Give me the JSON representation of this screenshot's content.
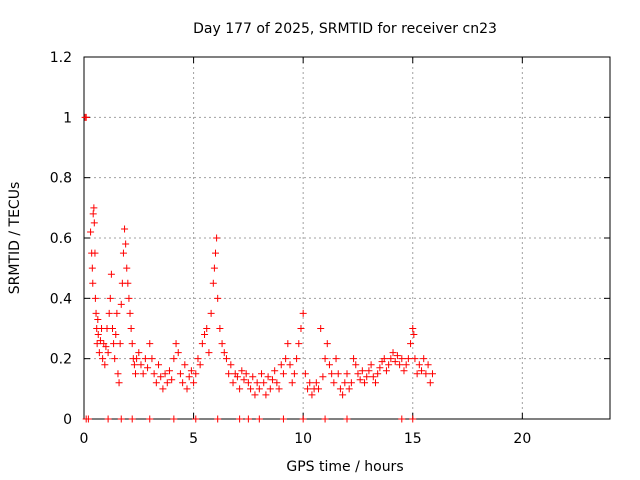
{
  "chart_data": {
    "type": "scatter",
    "title": "Day 177 of 2025, SRMTID for receiver cn23",
    "xlabel": "GPS time / hours",
    "ylabel": "SRMTID / TECUs",
    "xlim": [
      0,
      24
    ],
    "ylim": [
      0,
      1.2
    ],
    "xticks": [
      0,
      5,
      10,
      15,
      20
    ],
    "xtick_labels": [
      "0",
      "5",
      "10",
      "15",
      "20"
    ],
    "yticks": [
      0,
      0.2,
      0.4,
      0.6,
      0.8,
      1.0,
      1.2
    ],
    "ytick_labels": [
      "0",
      "0.2",
      "0.4",
      "0.6",
      "0.8",
      "1",
      "1.2"
    ],
    "grid": true,
    "marker": "+",
    "color": "#ff0000",
    "series": [
      {
        "name": "SRMTID",
        "points": [
          [
            0.05,
            1.0
          ],
          [
            0.1,
            1.0
          ],
          [
            0.3,
            0.62
          ],
          [
            0.35,
            0.55
          ],
          [
            0.38,
            0.5
          ],
          [
            0.4,
            0.45
          ],
          [
            0.42,
            0.68
          ],
          [
            0.45,
            0.7
          ],
          [
            0.47,
            0.65
          ],
          [
            0.5,
            0.55
          ],
          [
            0.52,
            0.4
          ],
          [
            0.55,
            0.35
          ],
          [
            0.58,
            0.3
          ],
          [
            0.6,
            0.25
          ],
          [
            0.63,
            0.33
          ],
          [
            0.65,
            0.28
          ],
          [
            0.7,
            0.22
          ],
          [
            0.75,
            0.26
          ],
          [
            0.8,
            0.3
          ],
          [
            0.85,
            0.2
          ],
          [
            0.9,
            0.25
          ],
          [
            0.95,
            0.18
          ],
          [
            1.0,
            0.24
          ],
          [
            1.05,
            0.3
          ],
          [
            1.1,
            0.22
          ],
          [
            1.15,
            0.35
          ],
          [
            1.2,
            0.4
          ],
          [
            1.25,
            0.48
          ],
          [
            1.3,
            0.3
          ],
          [
            1.35,
            0.25
          ],
          [
            1.4,
            0.2
          ],
          [
            1.45,
            0.28
          ],
          [
            1.5,
            0.35
          ],
          [
            1.55,
            0.15
          ],
          [
            1.6,
            0.12
          ],
          [
            1.65,
            0.25
          ],
          [
            1.7,
            0.38
          ],
          [
            1.75,
            0.45
          ],
          [
            1.8,
            0.55
          ],
          [
            1.85,
            0.63
          ],
          [
            1.9,
            0.58
          ],
          [
            1.95,
            0.5
          ],
          [
            2.0,
            0.45
          ],
          [
            2.05,
            0.4
          ],
          [
            2.1,
            0.35
          ],
          [
            2.15,
            0.3
          ],
          [
            2.2,
            0.25
          ],
          [
            2.25,
            0.2
          ],
          [
            2.3,
            0.18
          ],
          [
            2.35,
            0.15
          ],
          [
            2.4,
            0.2
          ],
          [
            2.5,
            0.22
          ],
          [
            2.6,
            0.18
          ],
          [
            2.7,
            0.15
          ],
          [
            2.8,
            0.2
          ],
          [
            2.9,
            0.17
          ],
          [
            3.0,
            0.25
          ],
          [
            3.1,
            0.2
          ],
          [
            3.2,
            0.15
          ],
          [
            3.3,
            0.12
          ],
          [
            3.4,
            0.18
          ],
          [
            3.5,
            0.14
          ],
          [
            3.6,
            0.1
          ],
          [
            3.7,
            0.15
          ],
          [
            3.8,
            0.12
          ],
          [
            3.9,
            0.16
          ],
          [
            4.0,
            0.13
          ],
          [
            4.1,
            0.2
          ],
          [
            4.2,
            0.25
          ],
          [
            4.3,
            0.22
          ],
          [
            4.4,
            0.15
          ],
          [
            4.5,
            0.12
          ],
          [
            4.6,
            0.18
          ],
          [
            4.7,
            0.1
          ],
          [
            4.8,
            0.14
          ],
          [
            4.9,
            0.16
          ],
          [
            5.0,
            0.12
          ],
          [
            5.1,
            0.15
          ],
          [
            5.2,
            0.2
          ],
          [
            5.3,
            0.18
          ],
          [
            5.4,
            0.25
          ],
          [
            5.5,
            0.28
          ],
          [
            5.6,
            0.3
          ],
          [
            5.7,
            0.22
          ],
          [
            5.8,
            0.35
          ],
          [
            5.9,
            0.45
          ],
          [
            5.95,
            0.5
          ],
          [
            6.0,
            0.55
          ],
          [
            6.05,
            0.6
          ],
          [
            6.1,
            0.4
          ],
          [
            6.2,
            0.3
          ],
          [
            6.3,
            0.25
          ],
          [
            6.4,
            0.22
          ],
          [
            6.5,
            0.2
          ],
          [
            6.6,
            0.15
          ],
          [
            6.7,
            0.18
          ],
          [
            6.8,
            0.12
          ],
          [
            6.9,
            0.15
          ],
          [
            7.0,
            0.14
          ],
          [
            7.1,
            0.1
          ],
          [
            7.2,
            0.16
          ],
          [
            7.3,
            0.13
          ],
          [
            7.4,
            0.15
          ],
          [
            7.5,
            0.12
          ],
          [
            7.6,
            0.1
          ],
          [
            7.7,
            0.14
          ],
          [
            7.8,
            0.08
          ],
          [
            7.9,
            0.12
          ],
          [
            8.0,
            0.1
          ],
          [
            8.1,
            0.15
          ],
          [
            8.2,
            0.12
          ],
          [
            8.3,
            0.08
          ],
          [
            8.4,
            0.14
          ],
          [
            8.5,
            0.1
          ],
          [
            8.6,
            0.13
          ],
          [
            8.7,
            0.16
          ],
          [
            8.8,
            0.12
          ],
          [
            8.9,
            0.1
          ],
          [
            9.0,
            0.18
          ],
          [
            9.1,
            0.15
          ],
          [
            9.2,
            0.2
          ],
          [
            9.3,
            0.25
          ],
          [
            9.4,
            0.18
          ],
          [
            9.5,
            0.12
          ],
          [
            9.6,
            0.15
          ],
          [
            9.7,
            0.2
          ],
          [
            9.8,
            0.25
          ],
          [
            9.9,
            0.3
          ],
          [
            10.0,
            0.35
          ],
          [
            10.1,
            0.15
          ],
          [
            10.2,
            0.1
          ],
          [
            10.3,
            0.12
          ],
          [
            10.4,
            0.08
          ],
          [
            10.5,
            0.1
          ],
          [
            10.6,
            0.12
          ],
          [
            10.7,
            0.1
          ],
          [
            10.8,
            0.3
          ],
          [
            10.9,
            0.14
          ],
          [
            11.0,
            0.2
          ],
          [
            11.1,
            0.25
          ],
          [
            11.2,
            0.18
          ],
          [
            11.3,
            0.15
          ],
          [
            11.4,
            0.12
          ],
          [
            11.5,
            0.2
          ],
          [
            11.6,
            0.15
          ],
          [
            11.7,
            0.1
          ],
          [
            11.8,
            0.08
          ],
          [
            11.9,
            0.12
          ],
          [
            12.0,
            0.15
          ],
          [
            12.1,
            0.1
          ],
          [
            12.2,
            0.12
          ],
          [
            12.3,
            0.2
          ],
          [
            12.4,
            0.18
          ],
          [
            12.5,
            0.15
          ],
          [
            12.6,
            0.13
          ],
          [
            12.7,
            0.16
          ],
          [
            12.8,
            0.12
          ],
          [
            12.9,
            0.14
          ],
          [
            13.0,
            0.16
          ],
          [
            13.1,
            0.18
          ],
          [
            13.2,
            0.14
          ],
          [
            13.3,
            0.12
          ],
          [
            13.4,
            0.15
          ],
          [
            13.5,
            0.17
          ],
          [
            13.6,
            0.19
          ],
          [
            13.7,
            0.2
          ],
          [
            13.8,
            0.16
          ],
          [
            13.9,
            0.18
          ],
          [
            14.0,
            0.2
          ],
          [
            14.1,
            0.22
          ],
          [
            14.2,
            0.19
          ],
          [
            14.3,
            0.21
          ],
          [
            14.4,
            0.18
          ],
          [
            14.5,
            0.2
          ],
          [
            14.6,
            0.16
          ],
          [
            14.7,
            0.18
          ],
          [
            14.8,
            0.2
          ],
          [
            14.9,
            0.25
          ],
          [
            15.0,
            0.3
          ],
          [
            15.05,
            0.28
          ],
          [
            15.1,
            0.2
          ],
          [
            15.2,
            0.15
          ],
          [
            15.3,
            0.18
          ],
          [
            15.4,
            0.16
          ],
          [
            15.5,
            0.2
          ],
          [
            15.6,
            0.15
          ],
          [
            15.7,
            0.18
          ],
          [
            15.8,
            0.12
          ],
          [
            15.9,
            0.15
          ],
          [
            0.1,
            0.0
          ],
          [
            0.2,
            0.0
          ],
          [
            1.1,
            0.0
          ],
          [
            1.7,
            0.0
          ],
          [
            2.2,
            0.0
          ],
          [
            3.0,
            0.0
          ],
          [
            4.1,
            0.0
          ],
          [
            5.1,
            0.0
          ],
          [
            6.1,
            0.0
          ],
          [
            7.1,
            0.0
          ],
          [
            7.5,
            0.0
          ],
          [
            8.0,
            0.0
          ],
          [
            9.1,
            0.0
          ],
          [
            10.0,
            0.0
          ],
          [
            11.0,
            0.0
          ],
          [
            12.0,
            0.0
          ],
          [
            14.5,
            0.0
          ],
          [
            15.0,
            0.0
          ]
        ]
      }
    ]
  }
}
